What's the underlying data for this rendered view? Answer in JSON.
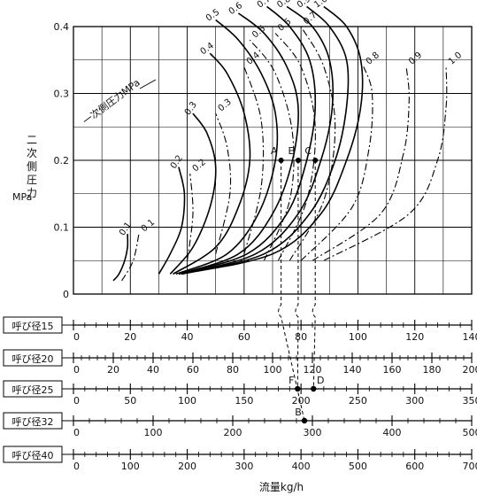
{
  "chart_data": {
    "type": "line",
    "title": "",
    "ylabel": [
      "二",
      "次",
      "側",
      "圧",
      "力"
    ],
    "yunit": "MPa",
    "xlabel": "流量kg/h",
    "ylim": [
      0,
      0.4
    ],
    "xlim": [
      0,
      140
    ],
    "y_ticks": [
      "0",
      "0.1",
      "0.2",
      "0.3",
      "0.4"
    ],
    "x_ticks_main": [
      "0",
      "20",
      "40",
      "60",
      "80",
      "100",
      "120",
      "140"
    ],
    "family_label": "一次側圧力MPa",
    "curve_labels": [
      "0.1",
      "0.2",
      "0.3",
      "0.4",
      "0.5",
      "0.6",
      "0.7",
      "0.8",
      "0.9",
      "1.0"
    ],
    "curve_families": [
      {
        "style": "solid",
        "series": [
          {
            "name": "0.1",
            "x": [
              14,
              16,
              18,
              19,
              19
            ],
            "y": [
              0.02,
              0.03,
              0.05,
              0.07,
              0.09
            ]
          },
          {
            "name": "0.2",
            "x": [
              30,
              34,
              38,
              39,
              37
            ],
            "y": [
              0.03,
              0.06,
              0.1,
              0.15,
              0.19
            ]
          },
          {
            "name": "0.3",
            "x": [
              34,
              42,
              48,
              50,
              47,
              42
            ],
            "y": [
              0.03,
              0.07,
              0.13,
              0.19,
              0.24,
              0.27
            ]
          },
          {
            "name": "0.4",
            "x": [
              35,
              50,
              58,
              62,
              60,
              54,
              48
            ],
            "y": [
              0.03,
              0.07,
              0.13,
              0.2,
              0.27,
              0.33,
              0.36
            ]
          },
          {
            "name": "0.5",
            "x": [
              36,
              54,
              65,
              71,
              71,
              66,
              58,
              50
            ],
            "y": [
              0.03,
              0.06,
              0.12,
              0.2,
              0.27,
              0.33,
              0.38,
              0.41
            ]
          },
          {
            "name": "0.6",
            "x": [
              37,
              58,
              70,
              77,
              79,
              75,
              67,
              58
            ],
            "y": [
              0.03,
              0.06,
              0.12,
              0.2,
              0.28,
              0.34,
              0.39,
              0.42
            ]
          },
          {
            "name": "0.7",
            "x": [
              37,
              61,
              75,
              82,
              85,
              83,
              76,
              68
            ],
            "y": [
              0.03,
              0.06,
              0.12,
              0.2,
              0.28,
              0.35,
              0.4,
              0.43
            ]
          },
          {
            "name": "0.8",
            "x": [
              38,
              64,
              79,
              87,
              91,
              90,
              84,
              75
            ],
            "y": [
              0.03,
              0.06,
              0.12,
              0.2,
              0.28,
              0.35,
              0.4,
              0.43
            ]
          },
          {
            "name": "0.9",
            "x": [
              38,
              67,
              83,
              92,
              96,
              96,
              90,
              82
            ],
            "y": [
              0.03,
              0.06,
              0.12,
              0.2,
              0.28,
              0.35,
              0.4,
              0.43
            ]
          },
          {
            "name": "1.0",
            "x": [
              38,
              70,
              87,
              96,
              101,
              101,
              96,
              88
            ],
            "y": [
              0.03,
              0.06,
              0.12,
              0.2,
              0.28,
              0.35,
              0.4,
              0.43
            ]
          }
        ]
      },
      {
        "style": "dash-dot",
        "series": [
          {
            "name": "0.1",
            "x": [
              17,
              21,
              23
            ],
            "y": [
              0.02,
              0.05,
              0.09
            ]
          },
          {
            "name": "0.2",
            "x": [
              40,
              42,
              41
            ],
            "y": [
              0.05,
              0.12,
              0.18
            ]
          },
          {
            "name": "0.3",
            "x": [
              50,
              55,
              54,
              50
            ],
            "y": [
              0.06,
              0.15,
              0.22,
              0.27
            ]
          },
          {
            "name": "0.4",
            "x": [
              60,
              66,
              66,
              60
            ],
            "y": [
              0.06,
              0.16,
              0.26,
              0.34
            ]
          },
          {
            "name": "0.5",
            "x": [
              67,
              76,
              77,
              71,
              62
            ],
            "y": [
              0.05,
              0.14,
              0.24,
              0.33,
              0.38
            ]
          },
          {
            "name": "0.6",
            "x": [
              72,
              82,
              85,
              80,
              71
            ],
            "y": [
              0.05,
              0.14,
              0.25,
              0.34,
              0.39
            ]
          },
          {
            "name": "0.7",
            "x": [
              76,
              88,
              92,
              88,
              80
            ],
            "y": [
              0.05,
              0.14,
              0.25,
              0.34,
              0.4
            ]
          },
          {
            "name": "0.8",
            "x": [
              80,
              98,
              104,
              105,
              102
            ],
            "y": [
              0.05,
              0.13,
              0.22,
              0.3,
              0.34
            ]
          },
          {
            "name": "0.9",
            "x": [
              84,
              108,
              116,
              118,
              117
            ],
            "y": [
              0.05,
              0.12,
              0.21,
              0.29,
              0.34
            ]
          },
          {
            "name": "1.0",
            "x": [
              88,
              118,
              128,
              131,
              131
            ],
            "y": [
              0.05,
              0.12,
              0.2,
              0.28,
              0.34
            ]
          }
        ]
      }
    ],
    "points": [
      {
        "label": "A",
        "x": 73,
        "y": 0.2
      },
      {
        "label": "E",
        "x": 79,
        "y": 0.2
      },
      {
        "label": "C",
        "x": 85,
        "y": 0.2
      }
    ],
    "nominal_scales": [
      {
        "label": "呼び径15",
        "ticks": [
          "0",
          "20",
          "40",
          "60",
          "80",
          "100",
          "120",
          "140"
        ]
      },
      {
        "label": "呼び径20",
        "ticks": [
          "0",
          "20",
          "40",
          "60",
          "80",
          "100",
          "120",
          "140",
          "160",
          "180",
          "200"
        ]
      },
      {
        "label": "呼び径25",
        "ticks": [
          "0",
          "50",
          "100",
          "150",
          "200",
          "250",
          "300",
          "350"
        ]
      },
      {
        "label": "呼び径32",
        "ticks": [
          "0",
          "100",
          "200",
          "300",
          "400",
          "500"
        ]
      },
      {
        "label": "呼び径40",
        "ticks": [
          "0",
          "100",
          "200",
          "300",
          "400",
          "500",
          "600",
          "700"
        ]
      }
    ],
    "scale_points": [
      {
        "label": "F",
        "scale": "呼び径25",
        "value": 197
      },
      {
        "label": "D",
        "scale": "呼び径25",
        "value": 211
      },
      {
        "label": "B",
        "scale": "呼び径32",
        "value": 290
      }
    ],
    "grid": true
  }
}
